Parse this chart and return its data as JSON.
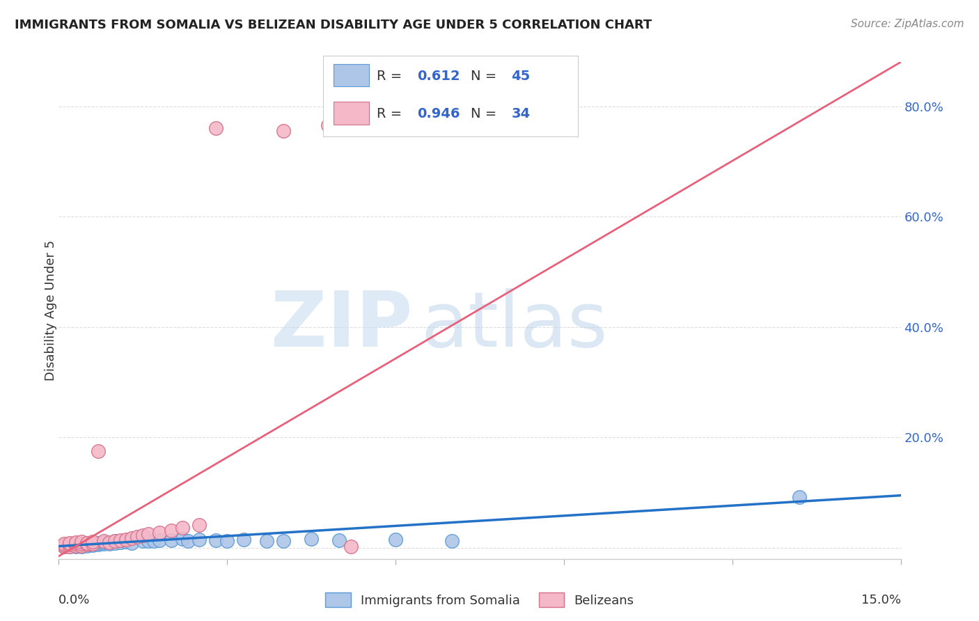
{
  "title": "IMMIGRANTS FROM SOMALIA VS BELIZEAN DISABILITY AGE UNDER 5 CORRELATION CHART",
  "source": "Source: ZipAtlas.com",
  "ylabel": "Disability Age Under 5",
  "xlim": [
    0.0,
    0.15
  ],
  "ylim": [
    -0.02,
    0.88
  ],
  "yticks": [
    0.0,
    0.2,
    0.4,
    0.6,
    0.8
  ],
  "ytick_labels": [
    "",
    "20.0%",
    "40.0%",
    "60.0%",
    "80.0%"
  ],
  "somalia_color": "#aec6e8",
  "somalia_edge_color": "#5b9bd5",
  "belizean_color": "#f4b8c8",
  "belizean_edge_color": "#d4708a",
  "line_somalia_color": "#2472c8",
  "line_belizean_color": "#e8607a",
  "line_somalia_x0": 0.0,
  "line_somalia_y0": 0.003,
  "line_somalia_x1": 0.15,
  "line_somalia_y1": 0.095,
  "line_belizean_x0": 0.0,
  "line_belizean_y0": -0.015,
  "line_belizean_x1": 0.15,
  "line_belizean_y1": 0.88,
  "somalia_R": "0.612",
  "somalia_N": "45",
  "belizean_R": "0.946",
  "belizean_N": "34",
  "legend_label_somalia": "Immigrants from Somalia",
  "legend_label_belizean": "Belizeans",
  "watermark_zip": "ZIP",
  "watermark_atlas": "atlas",
  "background_color": "#ffffff",
  "grid_color": "#dddddd",
  "somalia_x": [
    0.001,
    0.001,
    0.002,
    0.002,
    0.002,
    0.003,
    0.003,
    0.003,
    0.003,
    0.004,
    0.004,
    0.004,
    0.005,
    0.005,
    0.005,
    0.006,
    0.006,
    0.007,
    0.007,
    0.008,
    0.008,
    0.009,
    0.01,
    0.01,
    0.011,
    0.012,
    0.013,
    0.015,
    0.016,
    0.017,
    0.018,
    0.02,
    0.022,
    0.023,
    0.025,
    0.028,
    0.03,
    0.033,
    0.037,
    0.04,
    0.045,
    0.05,
    0.06,
    0.07,
    0.132
  ],
  "somalia_y": [
    0.003,
    0.005,
    0.002,
    0.004,
    0.006,
    0.002,
    0.004,
    0.006,
    0.008,
    0.003,
    0.005,
    0.007,
    0.004,
    0.006,
    0.008,
    0.005,
    0.007,
    0.006,
    0.009,
    0.007,
    0.01,
    0.008,
    0.009,
    0.012,
    0.01,
    0.011,
    0.009,
    0.012,
    0.013,
    0.012,
    0.014,
    0.014,
    0.016,
    0.013,
    0.015,
    0.014,
    0.013,
    0.015,
    0.013,
    0.013,
    0.016,
    0.014,
    0.015,
    0.012,
    0.092
  ],
  "belizean_x": [
    0.001,
    0.001,
    0.001,
    0.002,
    0.002,
    0.002,
    0.003,
    0.003,
    0.003,
    0.004,
    0.004,
    0.004,
    0.005,
    0.005,
    0.006,
    0.006,
    0.007,
    0.008,
    0.009,
    0.01,
    0.011,
    0.012,
    0.013,
    0.014,
    0.015,
    0.016,
    0.018,
    0.02,
    0.022,
    0.025,
    0.028,
    0.04,
    0.048,
    0.052
  ],
  "belizean_y": [
    0.003,
    0.005,
    0.008,
    0.003,
    0.006,
    0.009,
    0.004,
    0.007,
    0.01,
    0.004,
    0.008,
    0.011,
    0.006,
    0.009,
    0.008,
    0.011,
    0.175,
    0.012,
    0.01,
    0.013,
    0.014,
    0.015,
    0.018,
    0.02,
    0.022,
    0.025,
    0.028,
    0.032,
    0.036,
    0.042,
    0.76,
    0.755,
    0.765,
    0.003
  ]
}
